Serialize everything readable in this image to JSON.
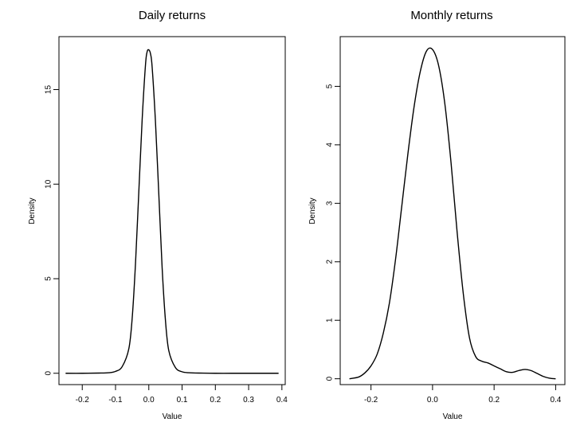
{
  "chart_data": [
    {
      "type": "line",
      "title": "Daily returns",
      "xlabel": "Value",
      "ylabel": "Density",
      "xlim": [
        -0.27,
        0.41
      ],
      "ylim": [
        -0.6,
        17.8
      ],
      "xticks": [
        -0.2,
        -0.1,
        0.0,
        0.1,
        0.2,
        0.3,
        0.4
      ],
      "xtick_labels": [
        "-0.2",
        "-0.1",
        "0.0",
        "0.1",
        "0.2",
        "0.3",
        "0.4"
      ],
      "yticks": [
        0,
        5,
        10,
        15
      ],
      "ytick_labels": [
        "0",
        "5",
        "10",
        "15"
      ],
      "grid": false,
      "series": [
        {
          "x": [
            -0.25,
            -0.2,
            -0.15,
            -0.12,
            -0.1,
            -0.08,
            -0.06,
            -0.05,
            -0.04,
            -0.03,
            -0.02,
            -0.01,
            -0.005,
            0.0,
            0.005,
            0.01,
            0.02,
            0.03,
            0.04,
            0.05,
            0.06,
            0.08,
            0.1,
            0.12,
            0.15,
            0.2,
            0.25,
            0.3,
            0.35,
            0.39
          ],
          "y": [
            0.0,
            0.0,
            0.01,
            0.03,
            0.1,
            0.35,
            1.3,
            2.9,
            5.8,
            9.6,
            13.4,
            16.3,
            17.0,
            17.1,
            16.9,
            16.2,
            13.3,
            9.5,
            5.6,
            2.8,
            1.2,
            0.3,
            0.08,
            0.03,
            0.01,
            0.0,
            0.0,
            0.0,
            0.0,
            0.0
          ]
        }
      ]
    },
    {
      "type": "line",
      "title": "Monthly returns",
      "xlabel": "Value",
      "ylabel": "Density",
      "xlim": [
        -0.3,
        0.43
      ],
      "ylim": [
        -0.1,
        5.85
      ],
      "xticks": [
        -0.2,
        0.0,
        0.2,
        0.4
      ],
      "xtick_labels": [
        "-0.2",
        "0.0",
        "0.2",
        "0.4"
      ],
      "yticks": [
        0,
        1,
        2,
        3,
        4,
        5
      ],
      "ytick_labels": [
        "0",
        "1",
        "2",
        "3",
        "4",
        "5"
      ],
      "grid": false,
      "series": [
        {
          "x": [
            -0.27,
            -0.24,
            -0.22,
            -0.2,
            -0.18,
            -0.16,
            -0.14,
            -0.12,
            -0.1,
            -0.08,
            -0.06,
            -0.04,
            -0.02,
            0.0,
            0.02,
            0.04,
            0.06,
            0.08,
            0.1,
            0.12,
            0.14,
            0.16,
            0.18,
            0.2,
            0.22,
            0.24,
            0.26,
            0.28,
            0.3,
            0.32,
            0.34,
            0.36,
            0.38,
            0.4
          ],
          "y": [
            0.0,
            0.03,
            0.1,
            0.22,
            0.42,
            0.78,
            1.3,
            2.05,
            2.95,
            3.85,
            4.65,
            5.25,
            5.6,
            5.63,
            5.35,
            4.7,
            3.7,
            2.5,
            1.45,
            0.7,
            0.38,
            0.3,
            0.27,
            0.22,
            0.17,
            0.12,
            0.11,
            0.14,
            0.16,
            0.14,
            0.09,
            0.04,
            0.01,
            0.0
          ]
        }
      ]
    }
  ]
}
